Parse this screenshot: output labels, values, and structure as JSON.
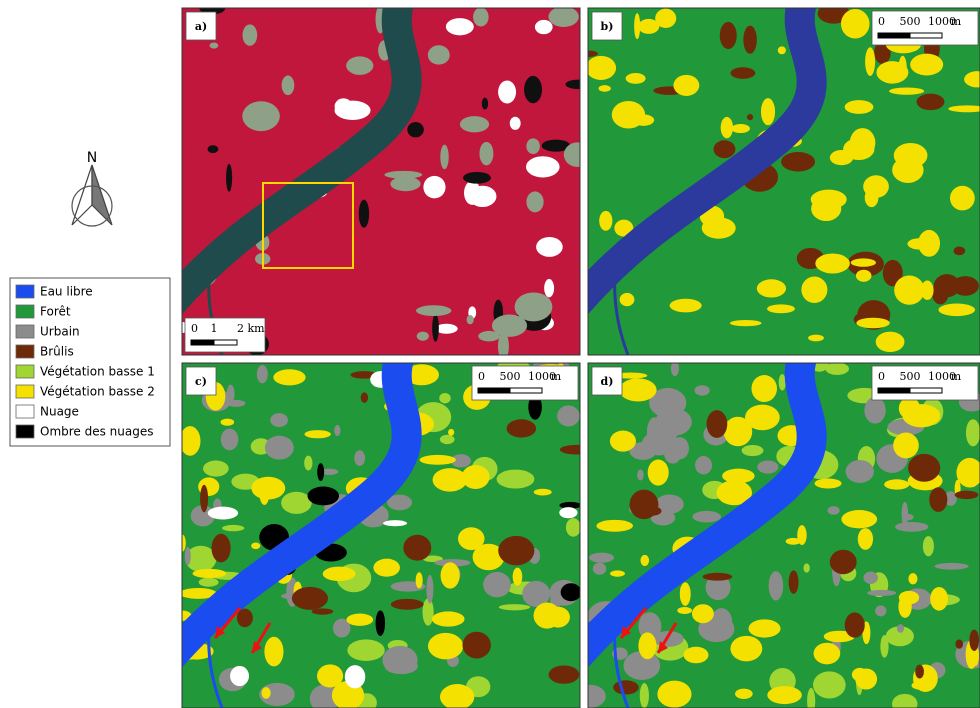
{
  "north_arrow": {
    "label": "N"
  },
  "legend": {
    "items": [
      {
        "label": "Eau libre",
        "color": "#1a4cf0"
      },
      {
        "label": "Forêt",
        "color": "#21983a"
      },
      {
        "label": "Urbain",
        "color": "#8c8c8c"
      },
      {
        "label": "Brûlis",
        "color": "#6e2a08"
      },
      {
        "label": "Végétation basse 1",
        "color": "#9fd632"
      },
      {
        "label": "Végétation basse 2",
        "color": "#f5e100"
      },
      {
        "label": "Nuage",
        "color": "#ffffff"
      },
      {
        "label": "Ombre des nuages",
        "color": "#000000"
      }
    ]
  },
  "panels": [
    {
      "label": "a)",
      "scale_bar": {
        "ticks": [
          "0",
          "1",
          "2 km"
        ]
      }
    },
    {
      "label": "b)",
      "scale_bar": {
        "ticks": [
          "0",
          "500",
          "1000",
          "m"
        ]
      }
    },
    {
      "label": "c)",
      "scale_bar": {
        "ticks": [
          "0",
          "500",
          "1000",
          "m"
        ]
      }
    },
    {
      "label": "d)",
      "scale_bar": {
        "ticks": [
          "0",
          "500",
          "1000",
          "m"
        ]
      }
    }
  ]
}
